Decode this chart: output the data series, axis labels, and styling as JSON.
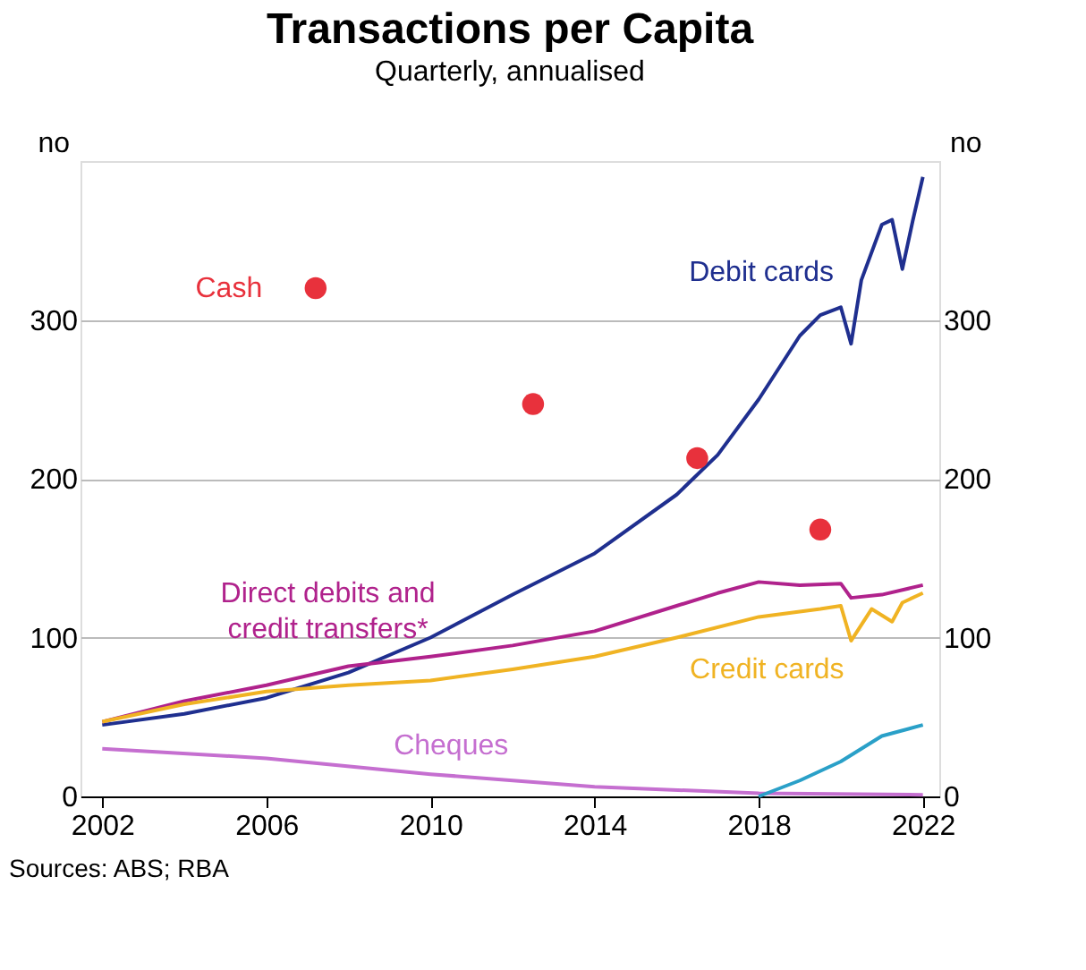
{
  "chart_data": {
    "type": "line",
    "title": "Transactions per Capita",
    "subtitle": "Quarterly, annualised",
    "ylabel": "no",
    "y2label": "no",
    "xlim": [
      2001.47,
      2022.4
    ],
    "xticks": [
      2002,
      2006,
      2010,
      2014,
      2018,
      2022
    ],
    "ylim": [
      0,
      400
    ],
    "yticks": [
      0,
      100,
      200,
      300
    ],
    "y2lim": [
      0,
      400
    ],
    "y2ticks": [
      0,
      100,
      200,
      300
    ],
    "grid": "y",
    "legend": false,
    "marker": "none",
    "line_style": "solid",
    "series": [
      {
        "name": "Debit cards",
        "color": "#1f2f8f",
        "x": [
          2002,
          2004,
          2006,
          2008,
          2010,
          2012,
          2014,
          2016,
          2017,
          2018,
          2019,
          2019.5,
          2020,
          2020.25,
          2020.5,
          2021,
          2021.25,
          2021.5,
          2021.75,
          2022
        ],
        "values": [
          45,
          52,
          62,
          78,
          100,
          127,
          153,
          190,
          215,
          250,
          290,
          303,
          308,
          285,
          325,
          360,
          363,
          332,
          362,
          390
        ]
      },
      {
        "name": "Direct debits and credit transfers*",
        "color": "#b0228c",
        "x": [
          2002,
          2004,
          2006,
          2008,
          2010,
          2012,
          2014,
          2016,
          2017,
          2018,
          2019,
          2020,
          2020.25,
          2021,
          2022
        ],
        "values": [
          47,
          60,
          70,
          82,
          88,
          95,
          104,
          120,
          128,
          135,
          133,
          134,
          125,
          127,
          133
        ]
      },
      {
        "name": "Credit cards",
        "color": "#f0b323",
        "x": [
          2002,
          2004,
          2006,
          2008,
          2010,
          2012,
          2014,
          2016,
          2018,
          2019.5,
          2020,
          2020.25,
          2020.75,
          2021.25,
          2021.5,
          2022
        ],
        "values": [
          47,
          58,
          66,
          70,
          73,
          80,
          88,
          100,
          113,
          118,
          120,
          98,
          118,
          110,
          122,
          128
        ]
      },
      {
        "name": "Cheques",
        "color": "#c56fd0",
        "x": [
          2002,
          2006,
          2010,
          2014,
          2018,
          2022
        ],
        "values": [
          30,
          24,
          14,
          6,
          2,
          1
        ]
      },
      {
        "color": "#2aa0c8",
        "x": [
          2018,
          2019,
          2020,
          2021,
          2022
        ],
        "values": [
          0,
          10,
          22,
          38,
          45
        ]
      },
      {
        "name": "Cash",
        "type": "scatter",
        "marker": "circle",
        "color": "#e8313c",
        "x": [
          2007.2,
          2012.5,
          2016.5,
          2019.5
        ],
        "values": [
          320,
          247,
          213,
          168
        ]
      }
    ],
    "annotations": [
      "Sources: ABS; RBA"
    ]
  }
}
